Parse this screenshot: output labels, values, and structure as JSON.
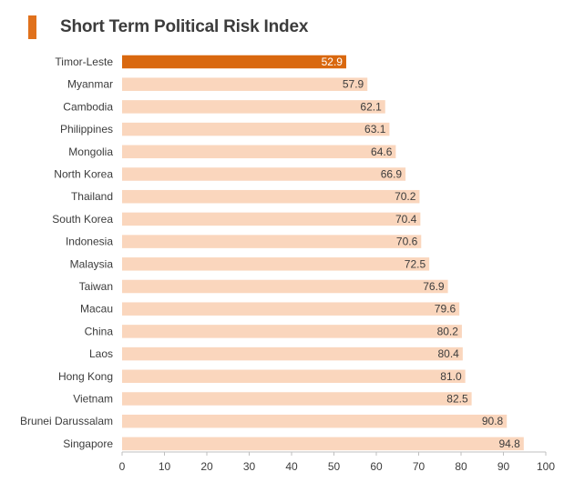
{
  "title": "Short Term Political Risk Index",
  "colors": {
    "accent": "#e0711c",
    "highlight_bar": "#d9680f",
    "bar": "#fad6bd",
    "axis": "#bfbfbf"
  },
  "chart_data": {
    "type": "bar",
    "orientation": "horizontal",
    "title": "Short Term Political Risk Index",
    "xlabel": "",
    "ylabel": "",
    "xlim": [
      0,
      100
    ],
    "ticks": [
      0,
      10,
      20,
      30,
      40,
      50,
      60,
      70,
      80,
      90,
      100
    ],
    "highlight": "Timor-Leste",
    "categories": [
      "Timor-Leste",
      "Myanmar",
      "Cambodia",
      "Philippines",
      "Mongolia",
      "North Korea",
      "Thailand",
      "South Korea",
      "Indonesia",
      "Malaysia",
      "Taiwan",
      "Macau",
      "China",
      "Laos",
      "Hong Kong",
      "Vietnam",
      "Brunei Darussalam",
      "Singapore"
    ],
    "values": [
      52.9,
      57.9,
      62.1,
      63.1,
      64.6,
      66.9,
      70.2,
      70.4,
      70.6,
      72.5,
      76.9,
      79.6,
      80.2,
      80.4,
      81.0,
      82.5,
      90.8,
      94.8
    ],
    "value_labels": [
      "52.9",
      "57.9",
      "62.1",
      "63.1",
      "64.6",
      "66.9",
      "70.2",
      "70.4",
      "70.6",
      "72.5",
      "76.9",
      "79.6",
      "80.2",
      "80.4",
      "81.0",
      "82.5",
      "90.8",
      "94.8"
    ]
  }
}
